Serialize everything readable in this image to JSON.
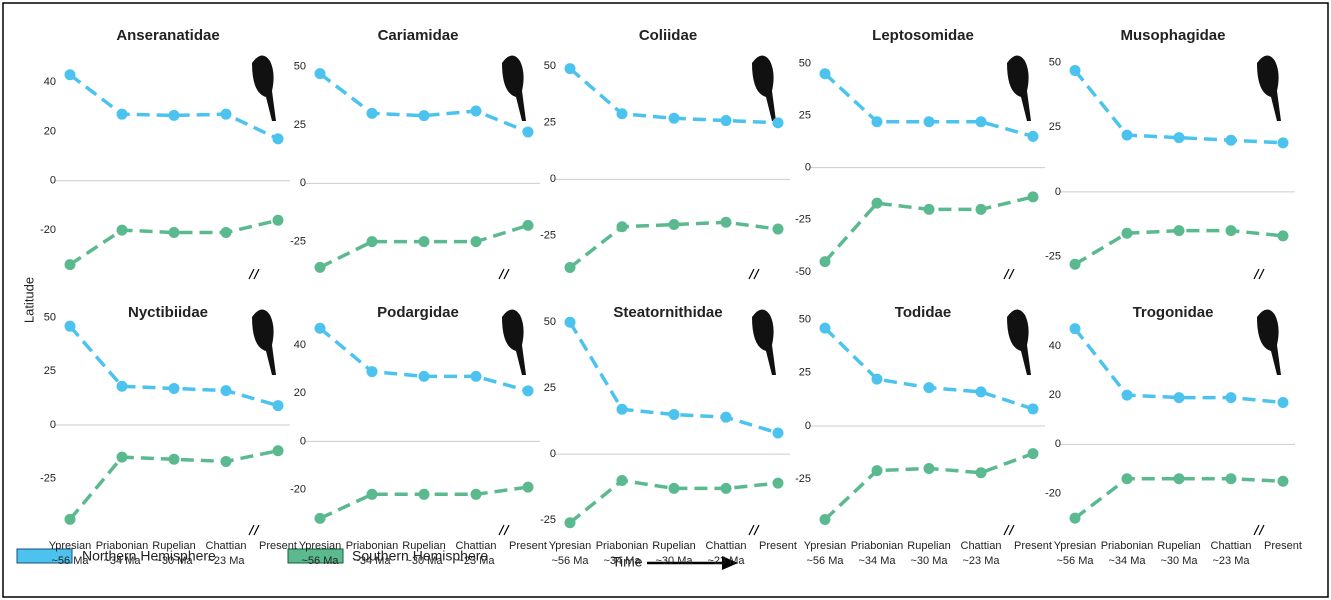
{
  "figure": {
    "ylabel": "Latitude",
    "time_label": "Time"
  },
  "chart_data": [
    {
      "type": "line",
      "title": "Anseranatidae",
      "categories": [
        null,
        null,
        null,
        null,
        null
      ],
      "category_ages": [
        null,
        null,
        null,
        null,
        null
      ],
      "ylim": [
        -37,
        51
      ],
      "yticks": [
        40,
        20,
        0,
        -20
      ],
      "zero_line": true,
      "series": [
        {
          "name": "Northern Hemisphere",
          "color": "#4cc3ef",
          "values": [
            43,
            27,
            26.5,
            27,
            17
          ]
        },
        {
          "name": "Southern Hemisphere",
          "color": "#5bb98f",
          "values": [
            -34,
            -20,
            -21,
            -21,
            -16
          ]
        }
      ]
    },
    {
      "type": "line",
      "title": "Cariamidae",
      "categories": [
        null,
        null,
        null,
        null,
        null
      ],
      "category_ages": [
        null,
        null,
        null,
        null,
        null
      ],
      "ylim": [
        -38,
        55
      ],
      "yticks": [
        50,
        25,
        0,
        -25
      ],
      "zero_line": true,
      "series": [
        {
          "color": "#4cc3ef",
          "values": [
            47,
            30,
            29,
            31,
            22
          ]
        },
        {
          "color": "#5bb98f",
          "values": [
            -36,
            -25,
            -25,
            -25,
            -18
          ]
        }
      ]
    },
    {
      "type": "line",
      "title": "Coliidae",
      "categories": [
        null,
        null,
        null,
        null,
        null
      ],
      "category_ages": [
        null,
        null,
        null,
        null,
        null
      ],
      "ylim": [
        -41,
        55
      ],
      "yticks": [
        50,
        25,
        0,
        -25
      ],
      "zero_line": true,
      "series": [
        {
          "color": "#4cc3ef",
          "values": [
            49,
            29,
            27,
            26,
            25
          ]
        },
        {
          "color": "#5bb98f",
          "values": [
            -39,
            -21,
            -20,
            -19,
            -22
          ]
        }
      ]
    },
    {
      "type": "line",
      "title": "Leptosomidae",
      "categories": [
        null,
        null,
        null,
        null,
        null
      ],
      "category_ages": [
        null,
        null,
        null,
        null,
        null
      ],
      "ylim": [
        -50,
        54
      ],
      "yticks": [
        50,
        25,
        0,
        -25,
        -50
      ],
      "zero_line": true,
      "series": [
        {
          "color": "#4cc3ef",
          "values": [
            45,
            22,
            22,
            22,
            15
          ]
        },
        {
          "color": "#5bb98f",
          "values": [
            -45,
            -17,
            -20,
            -20,
            -14
          ]
        }
      ]
    },
    {
      "type": "line",
      "title": "Musophagidae",
      "categories": [
        null,
        null,
        null,
        null,
        null
      ],
      "category_ages": [
        null,
        null,
        null,
        null,
        null
      ],
      "ylim": [
        -31,
        53
      ],
      "yticks": [
        50,
        25,
        0,
        -25
      ],
      "zero_line": true,
      "series": [
        {
          "color": "#4cc3ef",
          "values": [
            47,
            22,
            21,
            20,
            19
          ]
        },
        {
          "color": "#5bb98f",
          "values": [
            -28,
            -16,
            -15,
            -15,
            -17
          ]
        }
      ]
    },
    {
      "type": "line",
      "title": "Nyctibiidae",
      "categories": [
        "Ypresian",
        "Priabonian",
        "Rupelian",
        "Chattian",
        "Present"
      ],
      "category_ages": [
        "~56 Ma",
        "~34 Ma",
        "~30 Ma",
        "~23 Ma",
        null
      ],
      "ylim": [
        -48,
        54
      ],
      "yticks": [
        50,
        25,
        0,
        -25
      ],
      "zero_line": true,
      "series": [
        {
          "color": "#4cc3ef",
          "values": [
            46,
            18,
            17,
            16,
            9
          ]
        },
        {
          "color": "#5bb98f",
          "values": [
            -44,
            -15,
            -16,
            -17,
            -12
          ]
        }
      ]
    },
    {
      "type": "line",
      "title": "Podargidae",
      "categories": [
        "Ypresian",
        "Priabonian",
        "Rupelian",
        "Chattian",
        "Present"
      ],
      "category_ages": [
        "~56 Ma",
        "~34 Ma",
        "~30 Ma",
        "~23 Ma",
        null
      ],
      "ylim": [
        -36,
        55
      ],
      "yticks": [
        40,
        20,
        0,
        -20
      ],
      "zero_line": true,
      "series": [
        {
          "color": "#4cc3ef",
          "values": [
            47,
            29,
            27,
            27,
            21
          ]
        },
        {
          "color": "#5bb98f",
          "values": [
            -32,
            -22,
            -22,
            -22,
            -19
          ]
        }
      ]
    },
    {
      "type": "line",
      "title": "Steatornithidae",
      "categories": [
        "Ypresian",
        "Priabonian",
        "Rupelian",
        "Chattian",
        "Present"
      ],
      "category_ages": [
        "~56 Ma",
        "~34 Ma",
        "~30 Ma",
        "~23 Ma",
        null
      ],
      "ylim": [
        -28,
        55
      ],
      "yticks": [
        50,
        25,
        0,
        -25
      ],
      "zero_line": true,
      "series": [
        {
          "color": "#4cc3ef",
          "values": [
            50,
            17,
            15,
            14,
            8
          ]
        },
        {
          "color": "#5bb98f",
          "values": [
            -26,
            -10,
            -13,
            -13,
            -11
          ]
        }
      ]
    },
    {
      "type": "line",
      "title": "Todidae",
      "categories": [
        "Ypresian",
        "Priabonian",
        "Rupelian",
        "Chattian",
        "Present"
      ],
      "category_ages": [
        "~56 Ma",
        "~34 Ma",
        "~30 Ma",
        "~23 Ma",
        null
      ],
      "ylim": [
        -48,
        55
      ],
      "yticks": [
        50,
        25,
        0,
        -25
      ],
      "zero_line": true,
      "series": [
        {
          "color": "#4cc3ef",
          "values": [
            46,
            22,
            18,
            16,
            8
          ]
        },
        {
          "color": "#5bb98f",
          "values": [
            -44,
            -21,
            -20,
            -22,
            -13
          ]
        }
      ]
    },
    {
      "type": "line",
      "title": "Trogonidae",
      "categories": [
        "Ypresian",
        "Priabonian",
        "Rupelian",
        "Chattian",
        "Present"
      ],
      "category_ages": [
        "~56 Ma",
        "~34 Ma",
        "~30 Ma",
        "~23 Ma",
        null
      ],
      "ylim": [
        -34,
        55
      ],
      "yticks": [
        40,
        20,
        0,
        -20
      ],
      "zero_line": true,
      "series": [
        {
          "color": "#4cc3ef",
          "values": [
            47,
            20,
            19,
            19,
            17
          ]
        },
        {
          "color": "#5bb98f",
          "values": [
            -30,
            -14,
            -14,
            -14,
            -15
          ]
        }
      ]
    }
  ]
}
